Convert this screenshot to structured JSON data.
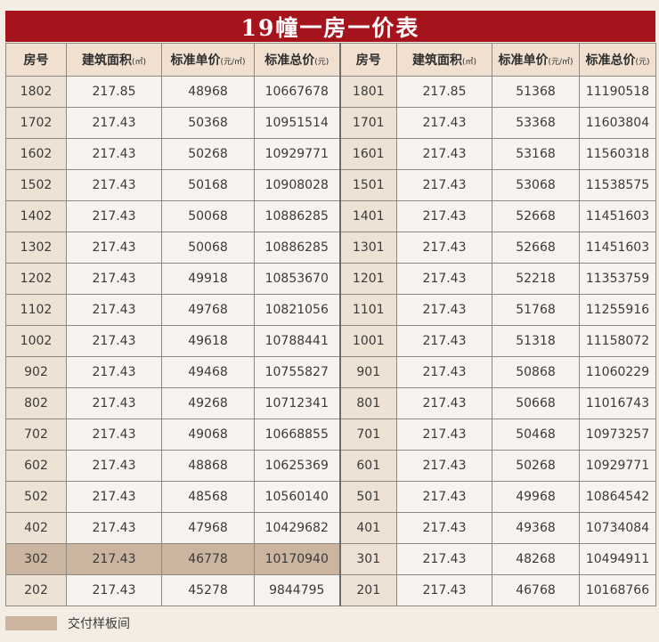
{
  "title": "19幢一房一价表",
  "headers": [
    {
      "label": "房号",
      "unit": ""
    },
    {
      "label": "建筑面积",
      "unit": "(㎡)"
    },
    {
      "label": "标准单价",
      "unit": "(元/㎡)"
    },
    {
      "label": "标准总价",
      "unit": "(元)"
    },
    {
      "label": "房号",
      "unit": ""
    },
    {
      "label": "建筑面积",
      "unit": "(㎡)"
    },
    {
      "label": "标准单价",
      "unit": "(元/㎡)"
    },
    {
      "label": "标准总价",
      "unit": "(元)"
    }
  ],
  "rows": [
    {
      "sample": false,
      "cells": [
        "1802",
        "217.85",
        "48968",
        "10667678",
        "1801",
        "217.85",
        "51368",
        "11190518"
      ]
    },
    {
      "sample": false,
      "cells": [
        "1702",
        "217.43",
        "50368",
        "10951514",
        "1701",
        "217.43",
        "53368",
        "11603804"
      ]
    },
    {
      "sample": false,
      "cells": [
        "1602",
        "217.43",
        "50268",
        "10929771",
        "1601",
        "217.43",
        "53168",
        "11560318"
      ]
    },
    {
      "sample": false,
      "cells": [
        "1502",
        "217.43",
        "50168",
        "10908028",
        "1501",
        "217.43",
        "53068",
        "11538575"
      ]
    },
    {
      "sample": false,
      "cells": [
        "1402",
        "217.43",
        "50068",
        "10886285",
        "1401",
        "217.43",
        "52668",
        "11451603"
      ]
    },
    {
      "sample": false,
      "cells": [
        "1302",
        "217.43",
        "50068",
        "10886285",
        "1301",
        "217.43",
        "52668",
        "11451603"
      ]
    },
    {
      "sample": false,
      "cells": [
        "1202",
        "217.43",
        "49918",
        "10853670",
        "1201",
        "217.43",
        "52218",
        "11353759"
      ]
    },
    {
      "sample": false,
      "cells": [
        "1102",
        "217.43",
        "49768",
        "10821056",
        "1101",
        "217.43",
        "51768",
        "11255916"
      ]
    },
    {
      "sample": false,
      "cells": [
        "1002",
        "217.43",
        "49618",
        "10788441",
        "1001",
        "217.43",
        "51318",
        "11158072"
      ]
    },
    {
      "sample": false,
      "cells": [
        "902",
        "217.43",
        "49468",
        "10755827",
        "901",
        "217.43",
        "50868",
        "11060229"
      ]
    },
    {
      "sample": false,
      "cells": [
        "802",
        "217.43",
        "49268",
        "10712341",
        "801",
        "217.43",
        "50668",
        "11016743"
      ]
    },
    {
      "sample": false,
      "cells": [
        "702",
        "217.43",
        "49068",
        "10668855",
        "701",
        "217.43",
        "50468",
        "10973257"
      ]
    },
    {
      "sample": false,
      "cells": [
        "602",
        "217.43",
        "48868",
        "10625369",
        "601",
        "217.43",
        "50268",
        "10929771"
      ]
    },
    {
      "sample": false,
      "cells": [
        "502",
        "217.43",
        "48568",
        "10560140",
        "501",
        "217.43",
        "49968",
        "10864542"
      ]
    },
    {
      "sample": false,
      "cells": [
        "402",
        "217.43",
        "47968",
        "10429682",
        "401",
        "217.43",
        "49368",
        "10734084"
      ]
    },
    {
      "sample": true,
      "cells": [
        "302",
        "217.43",
        "46778",
        "10170940",
        "301",
        "217.43",
        "48268",
        "10494911"
      ]
    },
    {
      "sample": false,
      "cells": [
        "202",
        "217.43",
        "45278",
        "9844795",
        "201",
        "217.43",
        "46768",
        "10168766"
      ]
    }
  ],
  "legend": {
    "label": "交付样板间"
  },
  "colors": {
    "title_bg": "#a5141c",
    "header_bg": "#f1e0cf",
    "sample_highlight": "#cbb5a0"
  }
}
